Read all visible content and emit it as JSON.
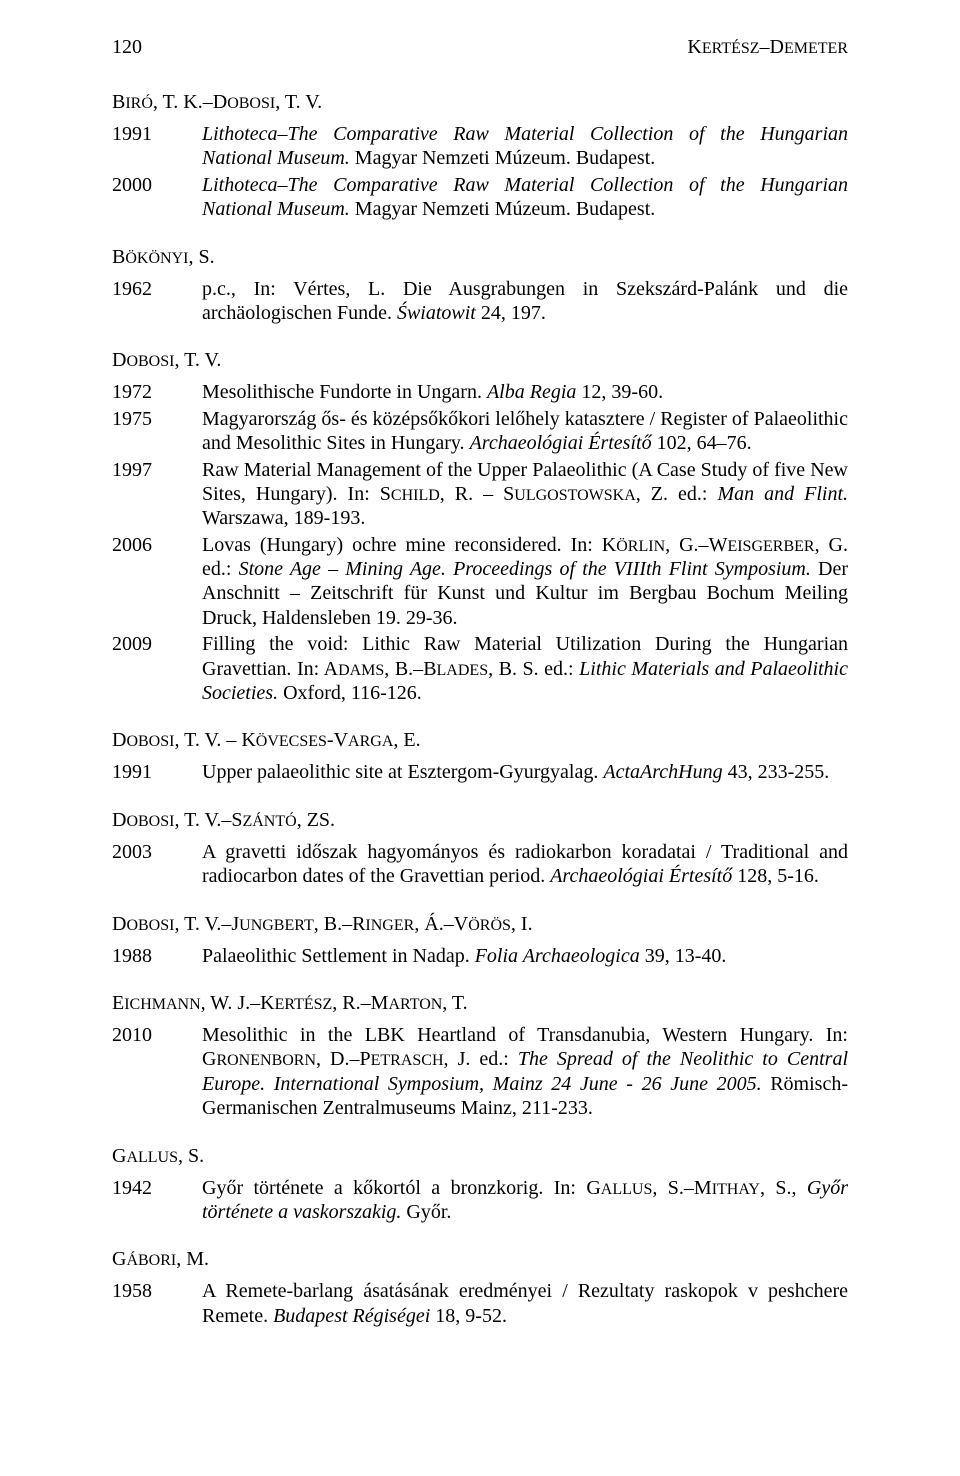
{
  "header": {
    "page_number": "120",
    "running_head_1": "K",
    "running_head_2": "ERTÉSZ",
    "running_head_sep": "–",
    "running_head_3": "D",
    "running_head_4": "EMETER"
  },
  "sections": [
    {
      "author_parts": [
        {
          "t": "B",
          "sc": true
        },
        {
          "t": "IRÓ",
          "sc": true
        },
        {
          "t": ", T. K.–",
          "sc": false
        },
        {
          "t": "D",
          "sc": true
        },
        {
          "t": "OBOSI",
          "sc": true
        },
        {
          "t": ", T. V.",
          "sc": false
        }
      ],
      "entries": [
        {
          "year": "1991",
          "runs": [
            {
              "t": "Lithoteca–The Comparative Raw Material Collection of the Hungarian National Museum.",
              "i": true
            },
            {
              "t": " Magyar Nemzeti Múzeum. Budapest."
            }
          ]
        },
        {
          "year": "2000",
          "runs": [
            {
              "t": "Lithoteca–The Comparative Raw Material Collection of the Hungarian National Museum.",
              "i": true
            },
            {
              "t": " Magyar Nemzeti Múzeum. Budapest."
            }
          ]
        }
      ]
    },
    {
      "author_parts": [
        {
          "t": "B",
          "sc": true
        },
        {
          "t": "ÖKÖNYI",
          "sc": true
        },
        {
          "t": ", S.",
          "sc": false
        }
      ],
      "entries": [
        {
          "year": "1962",
          "runs": [
            {
              "t": "p.c., In: Vértes, L. Die Ausgrabungen in Szekszárd-Palánk und die archäologischen Funde. "
            },
            {
              "t": "Światowit",
              "i": true
            },
            {
              "t": " 24, 197."
            }
          ]
        }
      ]
    },
    {
      "author_parts": [
        {
          "t": "D",
          "sc": true
        },
        {
          "t": "OBOSI",
          "sc": true
        },
        {
          "t": ", T. V.",
          "sc": false
        }
      ],
      "entries": [
        {
          "year": "1972",
          "runs": [
            {
              "t": "Mesolithische Fundorte in Ungarn. "
            },
            {
              "t": "Alba Regia",
              "i": true
            },
            {
              "t": " 12, 39-60."
            }
          ]
        },
        {
          "year": "1975",
          "runs": [
            {
              "t": "Magyarország ős- és középsőkőkori lelőhely katasztere / Register of Palaeolithic and Mesolithic Sites in Hungary. "
            },
            {
              "t": "Archaeológiai Értesítő",
              "i": true
            },
            {
              "t": " 102, 64–76."
            }
          ]
        },
        {
          "year": "1997",
          "runs": [
            {
              "t": "Raw Material Management of the Upper Palaeolithic (A Case Study of five New Sites, Hungary). In: "
            },
            {
              "t": "S",
              "sc": true
            },
            {
              "t": "CHILD",
              "sc": true
            },
            {
              "t": ", R. – "
            },
            {
              "t": "S",
              "sc": true
            },
            {
              "t": "ULGOSTOWSKA",
              "sc": true
            },
            {
              "t": ", Z. ed.: "
            },
            {
              "t": "Man and Flint.",
              "i": true
            },
            {
              "t": " Warszawa, 189-193."
            }
          ]
        },
        {
          "year": "2006",
          "runs": [
            {
              "t": "Lovas (Hungary) ochre mine reconsidered. In: "
            },
            {
              "t": "K",
              "sc": true
            },
            {
              "t": "ÖRLIN",
              "sc": true
            },
            {
              "t": ", G.–"
            },
            {
              "t": "W",
              "sc": true
            },
            {
              "t": "EISGERBER",
              "sc": true
            },
            {
              "t": ", G. ed.: "
            },
            {
              "t": "Stone Age – Mining Age. Proceedings of the VIIIth Flint Symposium.",
              "i": true
            },
            {
              "t": " Der Anschnitt – Zeitschrift für Kunst und Kultur im Bergbau Bochum Meiling Druck, Haldensleben 19. 29-36."
            }
          ]
        },
        {
          "year": "2009",
          "runs": [
            {
              "t": "Filling the void: Lithic Raw Material Utilization During the Hungarian Gravettian. In: "
            },
            {
              "t": "A",
              "sc": true
            },
            {
              "t": "DAMS",
              "sc": true
            },
            {
              "t": ", B.–"
            },
            {
              "t": "B",
              "sc": true
            },
            {
              "t": "LADES",
              "sc": true
            },
            {
              "t": ", B. S. ed.: "
            },
            {
              "t": "Lithic Materials and Palaeolithic Societies.",
              "i": true
            },
            {
              "t": " Oxford, 116-126."
            }
          ]
        }
      ]
    },
    {
      "author_parts": [
        {
          "t": "D",
          "sc": true
        },
        {
          "t": "OBOSI",
          "sc": true
        },
        {
          "t": ", T. V. – ",
          "sc": false
        },
        {
          "t": "K",
          "sc": true
        },
        {
          "t": "ÖVECSES",
          "sc": true
        },
        {
          "t": "-",
          "sc": false
        },
        {
          "t": "V",
          "sc": true
        },
        {
          "t": "ARGA",
          "sc": true
        },
        {
          "t": ", E.",
          "sc": false
        }
      ],
      "entries": [
        {
          "year": "1991",
          "runs": [
            {
              "t": "Upper palaeolithic site at Esztergom-Gyurgyalag. "
            },
            {
              "t": "ActaArchHung",
              "i": true
            },
            {
              "t": " 43, 233-255."
            }
          ]
        }
      ]
    },
    {
      "author_parts": [
        {
          "t": "D",
          "sc": true
        },
        {
          "t": "OBOSI",
          "sc": true
        },
        {
          "t": ", T. V.–",
          "sc": false
        },
        {
          "t": "S",
          "sc": true
        },
        {
          "t": "ZÁNTÓ",
          "sc": true
        },
        {
          "t": ", Z",
          "sc": false
        },
        {
          "t": "S",
          "sc": true
        },
        {
          "t": ".",
          "sc": false
        }
      ],
      "entries": [
        {
          "year": "2003",
          "runs": [
            {
              "t": "A gravetti időszak hagyományos és radiokarbon koradatai / Traditional and radiocarbon dates of the Gravettian period. "
            },
            {
              "t": "Archaeológiai Értesítő",
              "i": true
            },
            {
              "t": " 128, 5-16."
            }
          ]
        }
      ]
    },
    {
      "author_parts": [
        {
          "t": "D",
          "sc": true
        },
        {
          "t": "OBOSI",
          "sc": true
        },
        {
          "t": ", T. V.–",
          "sc": false
        },
        {
          "t": "J",
          "sc": true
        },
        {
          "t": "UNGBERT",
          "sc": true
        },
        {
          "t": ", B.–",
          "sc": false
        },
        {
          "t": "R",
          "sc": true
        },
        {
          "t": "INGER",
          "sc": true
        },
        {
          "t": ", Á.–",
          "sc": false
        },
        {
          "t": "V",
          "sc": true
        },
        {
          "t": "ÖRÖS",
          "sc": true
        },
        {
          "t": ", I.",
          "sc": false
        }
      ],
      "entries": [
        {
          "year": "1988",
          "runs": [
            {
              "t": "Palaeolithic Settlement in Nadap. "
            },
            {
              "t": "Folia Archaeologica",
              "i": true
            },
            {
              "t": " 39, 13-40."
            }
          ]
        }
      ]
    },
    {
      "author_parts": [
        {
          "t": "E",
          "sc": true
        },
        {
          "t": "ICHMANN",
          "sc": true
        },
        {
          "t": ", W. J.–",
          "sc": false
        },
        {
          "t": "K",
          "sc": true
        },
        {
          "t": "ERTÉSZ",
          "sc": true
        },
        {
          "t": ", R.–",
          "sc": false
        },
        {
          "t": "M",
          "sc": true
        },
        {
          "t": "ARTON",
          "sc": true
        },
        {
          "t": ", T.",
          "sc": false
        }
      ],
      "entries": [
        {
          "year": "2010",
          "runs": [
            {
              "t": "Mesolithic in the LBK Heartland of Transdanubia, Western Hungary. In: "
            },
            {
              "t": "G",
              "sc": true
            },
            {
              "t": "RONENBORN",
              "sc": true
            },
            {
              "t": ", D.–"
            },
            {
              "t": "P",
              "sc": true
            },
            {
              "t": "ETRASCH",
              "sc": true
            },
            {
              "t": ", J. ed.: "
            },
            {
              "t": "The Spread of the Neolithic to Central Europe. International Symposium, Mainz 24 June - 26 June 2005.",
              "i": true
            },
            {
              "t": " Römisch-Germanischen Zentralmuseums Mainz, 211-233."
            }
          ]
        }
      ]
    },
    {
      "author_parts": [
        {
          "t": "G",
          "sc": true
        },
        {
          "t": "ALLUS",
          "sc": true
        },
        {
          "t": ", S.",
          "sc": false
        }
      ],
      "entries": [
        {
          "year": "1942",
          "runs": [
            {
              "t": "Győr története a kőkortól a bronzkorig. In: "
            },
            {
              "t": "G",
              "sc": true
            },
            {
              "t": "ALLUS",
              "sc": true
            },
            {
              "t": ", S.–"
            },
            {
              "t": "M",
              "sc": true
            },
            {
              "t": "ITHAY",
              "sc": true
            },
            {
              "t": ", S., "
            },
            {
              "t": "Győr története a vaskorszakig.",
              "i": true
            },
            {
              "t": " Győr."
            }
          ]
        }
      ]
    },
    {
      "author_parts": [
        {
          "t": "G",
          "sc": true
        },
        {
          "t": "ÁBORI",
          "sc": true
        },
        {
          "t": ", M.",
          "sc": false
        }
      ],
      "entries": [
        {
          "year": "1958",
          "runs": [
            {
              "t": "A Remete-barlang ásatásának eredményei / Rezultaty raskopok v peshchere Remete. "
            },
            {
              "t": "Budapest Régiségei",
              "i": true
            },
            {
              "t": " 18, 9-52."
            }
          ]
        }
      ]
    }
  ]
}
